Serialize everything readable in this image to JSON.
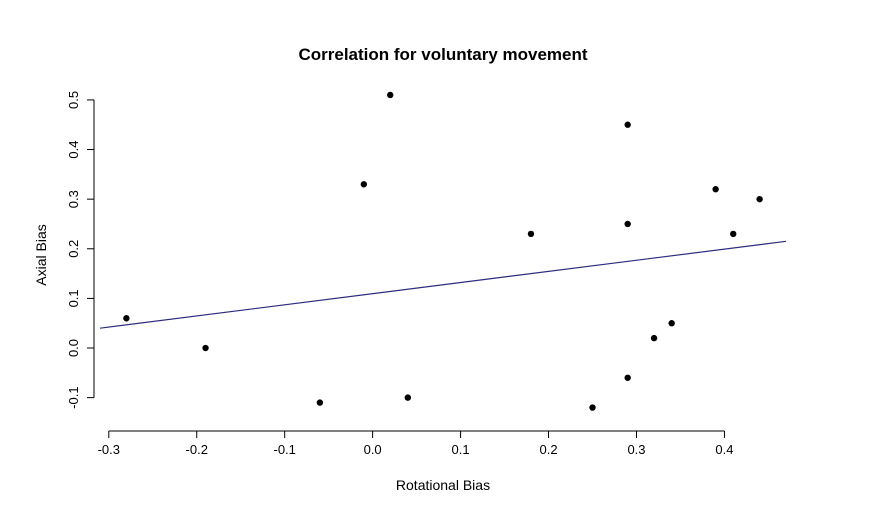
{
  "chart_data": {
    "type": "scatter",
    "title": "Correlation for voluntary movement",
    "xlabel": "Rotational Bias",
    "ylabel": "Axial Bias",
    "xlim": [
      -0.31,
      0.47
    ],
    "ylim": [
      -0.135,
      0.52
    ],
    "x_ticks": [
      -0.3,
      -0.2,
      -0.1,
      0.0,
      0.1,
      0.2,
      0.3,
      0.4
    ],
    "x_tick_labels": [
      "-0.3",
      "-0.2",
      "-0.1",
      "0.0",
      "0.1",
      "0.2",
      "0.3",
      "0.4"
    ],
    "y_ticks": [
      -0.1,
      0.0,
      0.1,
      0.2,
      0.3,
      0.4,
      0.5
    ],
    "y_tick_labels": [
      "-0.1",
      "0.0",
      "0.1",
      "0.2",
      "0.3",
      "0.4",
      "0.5"
    ],
    "grid": false,
    "points": [
      {
        "x": -0.28,
        "y": 0.06
      },
      {
        "x": -0.19,
        "y": 0.0
      },
      {
        "x": -0.06,
        "y": -0.11
      },
      {
        "x": -0.01,
        "y": 0.33
      },
      {
        "x": 0.02,
        "y": 0.51
      },
      {
        "x": 0.04,
        "y": -0.1
      },
      {
        "x": 0.18,
        "y": 0.23
      },
      {
        "x": 0.25,
        "y": -0.12
      },
      {
        "x": 0.29,
        "y": 0.45
      },
      {
        "x": 0.29,
        "y": 0.25
      },
      {
        "x": 0.29,
        "y": -0.06
      },
      {
        "x": 0.32,
        "y": 0.02
      },
      {
        "x": 0.34,
        "y": 0.05
      },
      {
        "x": 0.39,
        "y": 0.32
      },
      {
        "x": 0.41,
        "y": 0.23
      },
      {
        "x": 0.44,
        "y": 0.3
      }
    ],
    "fit_line": {
      "x": [
        -0.31,
        0.47
      ],
      "y": [
        0.04,
        0.215
      ],
      "color": "#2b2b80"
    },
    "point_color": "#000000"
  }
}
